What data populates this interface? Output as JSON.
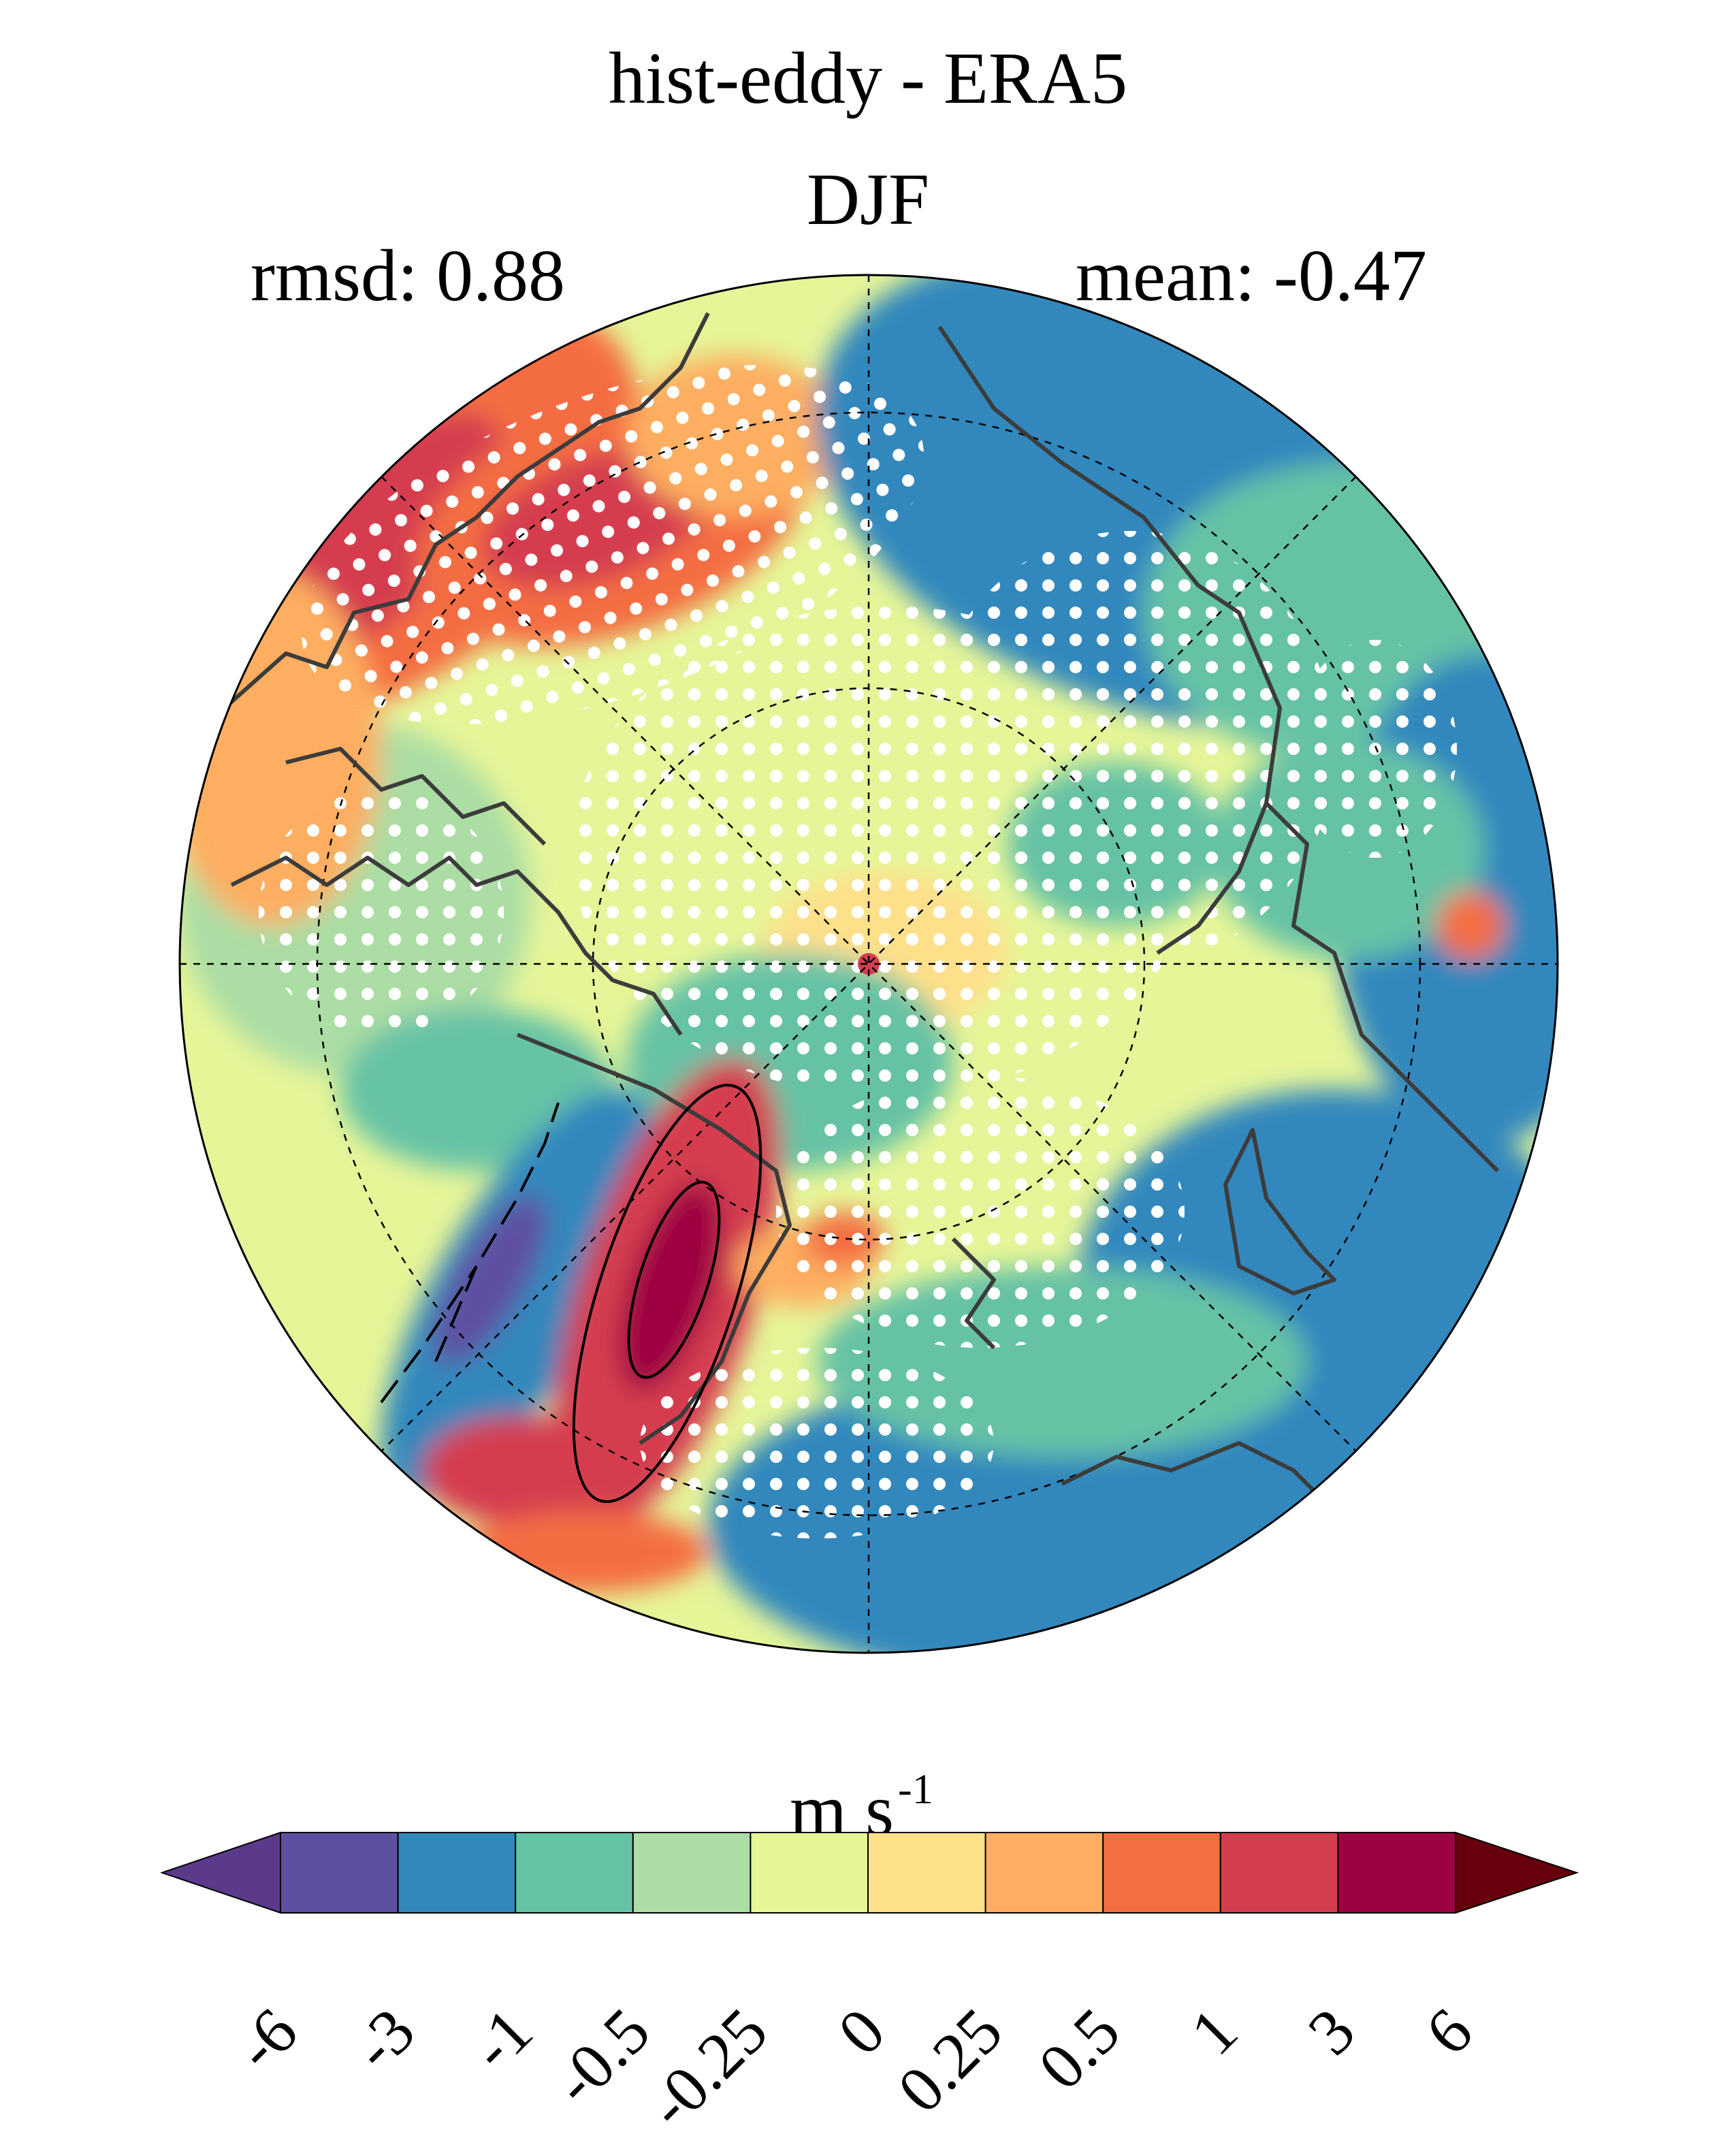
{
  "title": "hist-eddy - ERA5",
  "season": "DJF",
  "stats": {
    "rmsd": "rmsd: 0.88",
    "mean": "mean: -0.47"
  },
  "map": {
    "projection": "north polar stereographic",
    "variable": "hist-eddy minus ERA5 wind difference",
    "hatching": "white dots mark stippled (insignificant/agreeing) regions",
    "contours": "black contour lines over North Atlantic jet region"
  },
  "colorbar": {
    "units_base": "m s",
    "units_exp": "-1",
    "levels": [
      "-6",
      "-3",
      "-1",
      "-0.5",
      "-0.25",
      "0",
      "0.25",
      "0.5",
      "1",
      "3",
      "6"
    ],
    "colors": [
      "#5e4fa2",
      "#3288bd",
      "#66c2a5",
      "#abdda4",
      "#e6f598",
      "#fee08b",
      "#fdae61",
      "#f46d43",
      "#d53e4f",
      "#9e0142"
    ],
    "under_color": "#5b3a8c",
    "over_color": "#67000d"
  }
}
